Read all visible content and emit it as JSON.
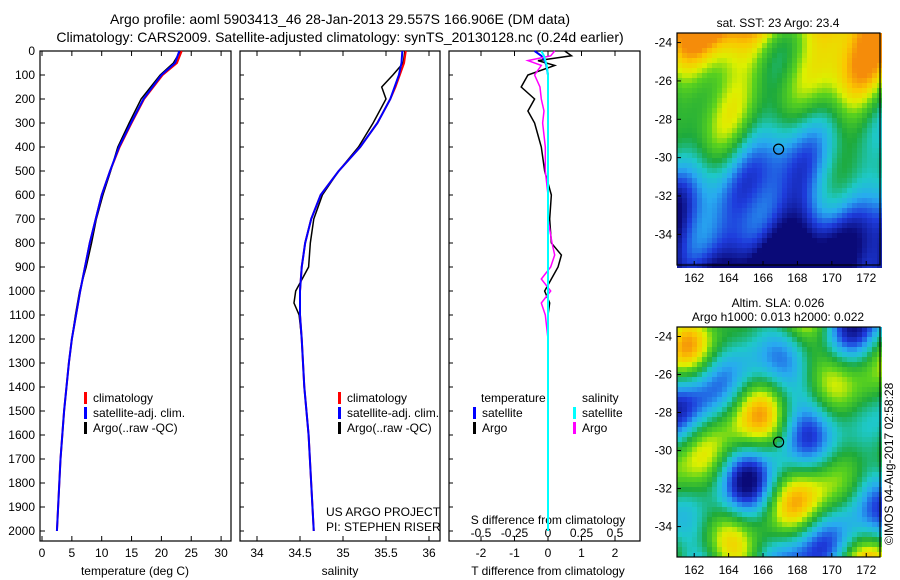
{
  "title_line1": "Argo profile: aoml 5903413_46 28-Jan-2013 29.557S 166.906E (DM data)",
  "title_line2": "Climatology: CARS2009. Satellite-adjusted climatology: synTS_20130128.nc (0.24d earlier)",
  "colors": {
    "climatology": "#ff0000",
    "satellite": "#0000ff",
    "argo": "#000000",
    "s_satellite": "#00ffff",
    "s_argo": "#ff00ff"
  },
  "chart_data": [
    {
      "type": "line",
      "title": "temperature profile",
      "xlabel": "temperature (deg C)",
      "ylabel": "depth",
      "xlim": [
        -1,
        31
      ],
      "ylim": [
        2050,
        0
      ],
      "xticks": [
        0,
        5,
        10,
        15,
        20,
        25,
        30
      ],
      "yticks": [
        0,
        100,
        200,
        300,
        400,
        500,
        600,
        700,
        800,
        900,
        1000,
        1100,
        1200,
        1300,
        1400,
        1500,
        1600,
        1700,
        1800,
        1900,
        2000
      ],
      "legend": [
        "climatology",
        "satellite-adj. clim.",
        "Argo(..raw -QC)"
      ],
      "depth": [
        0,
        50,
        100,
        200,
        300,
        400,
        500,
        600,
        700,
        800,
        900,
        1000,
        1100,
        1200,
        1300,
        1400,
        1500,
        1600,
        1700,
        1800,
        1900,
        2000
      ],
      "series": [
        {
          "name": "climatology",
          "values": [
            23.4,
            22.6,
            20.2,
            17.1,
            15.0,
            13.0,
            11.4,
            10.0,
            9.0,
            8.0,
            7.2,
            6.4,
            5.7,
            5.0,
            4.5,
            4.1,
            3.7,
            3.4,
            3.1,
            2.9,
            2.7,
            2.5
          ]
        },
        {
          "name": "satellite-adj. clim.",
          "values": [
            23.0,
            22.3,
            20.0,
            17.0,
            14.9,
            12.9,
            11.4,
            10.0,
            9.0,
            8.0,
            7.2,
            6.4,
            5.7,
            5.0,
            4.5,
            4.1,
            3.7,
            3.4,
            3.1,
            2.9,
            2.7,
            2.5
          ]
        },
        {
          "name": "Argo(..raw -QC)",
          "values": [
            23.2,
            22.0,
            19.8,
            16.6,
            14.6,
            12.7,
            11.5,
            10.2,
            9.1,
            8.3,
            7.4,
            6.3,
            5.6,
            5.0,
            4.5,
            4.1,
            3.7,
            3.4,
            3.1,
            2.9,
            2.7,
            2.5
          ]
        }
      ]
    },
    {
      "type": "line",
      "title": "salinity profile",
      "xlabel": "salinity",
      "xlim": [
        33.8,
        36.1
      ],
      "ylim": [
        2050,
        0
      ],
      "xticks": [
        34,
        34.5,
        35,
        35.5,
        36
      ],
      "legend": [
        "climatology",
        "satellite-adj. clim.",
        "Argo(..raw -QC)"
      ],
      "annotation": [
        "US ARGO PROJECT",
        "PI: STEPHEN RISER"
      ],
      "depth": [
        0,
        50,
        100,
        150,
        200,
        300,
        400,
        500,
        600,
        700,
        800,
        900,
        1000,
        1050,
        1100,
        1200,
        1400,
        1600,
        1800,
        2000
      ],
      "series": [
        {
          "name": "climatology",
          "values": [
            35.73,
            35.71,
            35.66,
            35.61,
            35.55,
            35.4,
            35.2,
            34.95,
            34.74,
            34.63,
            34.56,
            34.52,
            34.5,
            34.5,
            34.5,
            34.52,
            34.55,
            34.6,
            34.63,
            34.66
          ]
        },
        {
          "name": "satellite-adj. clim.",
          "values": [
            35.69,
            35.68,
            35.65,
            35.6,
            35.55,
            35.4,
            35.2,
            34.95,
            34.74,
            34.63,
            34.56,
            34.52,
            34.5,
            34.5,
            34.5,
            34.52,
            34.55,
            34.6,
            34.63,
            34.66
          ]
        },
        {
          "name": "Argo(..raw -QC)",
          "values": [
            35.72,
            35.7,
            35.58,
            35.45,
            35.5,
            35.35,
            35.18,
            34.95,
            34.76,
            34.66,
            34.62,
            34.6,
            34.45,
            34.43,
            34.49,
            34.52,
            34.55,
            34.6,
            34.63,
            34.66
          ]
        }
      ]
    },
    {
      "type": "line",
      "title": "difference from climatology",
      "xlabel": "T difference from climatology",
      "x2label": "S difference from climatology",
      "xlim": [
        -3,
        3
      ],
      "xticks": [
        -2,
        -1,
        0,
        1,
        2
      ],
      "x2ticks": [
        -0.5,
        -0.25,
        0,
        0.25,
        0.5
      ],
      "legend": {
        "temperature": [
          "satellite",
          "Argo"
        ],
        "salinity": [
          "satellite",
          "Argo"
        ],
        "temperature_title": "temperature",
        "salinity_title": "salinity"
      },
      "depth": [
        0,
        20,
        40,
        60,
        100,
        150,
        200,
        250,
        300,
        350,
        400,
        500,
        600,
        700,
        800,
        850,
        900,
        950,
        1000,
        1050,
        1100,
        1200,
        1500,
        2000
      ],
      "series": [
        {
          "name": "T satellite",
          "values": [
            -0.4,
            -0.2,
            -0.1,
            -0.05,
            0,
            0,
            0,
            0,
            0,
            0,
            0,
            0,
            0,
            0,
            0,
            0,
            0,
            0,
            0,
            0,
            0,
            0,
            0,
            0
          ]
        },
        {
          "name": "T Argo",
          "values": [
            0.5,
            0.7,
            -0.3,
            0.2,
            -0.6,
            -0.8,
            -0.4,
            -0.6,
            -0.4,
            -0.3,
            -0.2,
            -0.1,
            0.1,
            0.05,
            0.1,
            0.4,
            0.3,
            0.1,
            -0.1,
            0.05,
            0,
            0,
            0,
            0
          ]
        },
        {
          "name": "S satellite",
          "values": [
            -0.05,
            -0.03,
            -0.02,
            -0.01,
            0,
            0,
            0,
            0,
            0,
            0,
            0,
            0,
            0,
            0,
            0,
            0,
            0,
            0,
            0,
            0,
            0,
            0,
            0,
            0
          ]
        },
        {
          "name": "S Argo",
          "values": [
            0.05,
            0.02,
            -0.15,
            -0.05,
            -0.1,
            -0.06,
            -0.05,
            -0.03,
            -0.04,
            -0.03,
            -0.02,
            -0.02,
            0,
            0,
            0.03,
            0.05,
            0.02,
            -0.05,
            0.02,
            -0.05,
            -0.02,
            0,
            0,
            0
          ]
        }
      ]
    },
    {
      "type": "heatmap",
      "title": "sat. SST: 23 Argo: 23.4",
      "xticks": [
        162,
        164,
        166,
        168,
        170,
        172
      ],
      "yticks": [
        -24,
        -26,
        -28,
        -30,
        -32,
        -34
      ],
      "xlim": [
        161,
        172.8
      ],
      "ylim": [
        -35.6,
        -23.5
      ],
      "marker": [
        166.906,
        -29.557
      ]
    },
    {
      "type": "heatmap",
      "title": "Altim. SLA: 0.026",
      "subtitle": "Argo h1000: 0.013 h2000: 0.022",
      "xticks": [
        162,
        164,
        166,
        168,
        170,
        172
      ],
      "yticks": [
        -24,
        -26,
        -28,
        -30,
        -32,
        -34
      ],
      "xlim": [
        161,
        172.8
      ],
      "ylim": [
        -35.6,
        -23.5
      ],
      "marker": [
        166.906,
        -29.557
      ]
    }
  ],
  "copyright": "©IMOS 04-Aug-2017 02:58:28"
}
